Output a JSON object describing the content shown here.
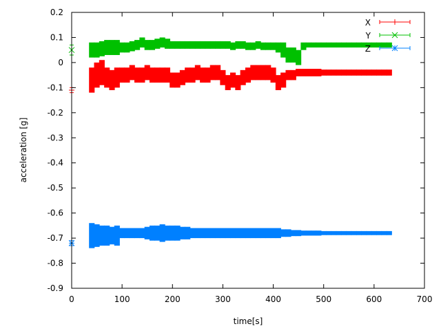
{
  "chart_data": {
    "type": "scatter",
    "subtype": "yerrorbars",
    "title": "",
    "xlabel": "time[s]",
    "ylabel": "acceleration [g]",
    "xlim": [
      0,
      700
    ],
    "ylim": [
      -0.9,
      0.2
    ],
    "xticks": [
      "0",
      "100",
      "200",
      "300",
      "400",
      "500",
      "600",
      "700"
    ],
    "yticks": [
      "0.2",
      "0.1",
      "0",
      "-0.1",
      "-0.2",
      "-0.3",
      "-0.4",
      "-0.5",
      "-0.6",
      "-0.7",
      "-0.8",
      "-0.9"
    ],
    "grid": false,
    "legend_position": "top-right",
    "x": [
      0,
      40,
      50,
      60,
      70,
      80,
      90,
      100,
      110,
      120,
      130,
      140,
      150,
      160,
      170,
      180,
      190,
      200,
      210,
      220,
      230,
      240,
      250,
      260,
      270,
      280,
      290,
      300,
      310,
      320,
      330,
      340,
      350,
      360,
      370,
      380,
      390,
      400,
      410,
      420,
      430,
      440,
      450,
      460,
      470,
      480,
      490,
      500,
      510,
      520,
      530,
      540,
      550,
      560,
      570,
      580,
      590,
      600,
      610,
      620,
      630
    ],
    "series": [
      {
        "name": "X",
        "color": "#ff0000",
        "marker": "plus",
        "y": [
          -0.11,
          -0.07,
          -0.05,
          -0.04,
          -0.06,
          -0.07,
          -0.06,
          -0.05,
          -0.05,
          -0.04,
          -0.05,
          -0.05,
          -0.04,
          -0.05,
          -0.05,
          -0.05,
          -0.05,
          -0.07,
          -0.07,
          -0.06,
          -0.05,
          -0.05,
          -0.04,
          -0.05,
          -0.05,
          -0.04,
          -0.04,
          -0.06,
          -0.08,
          -0.07,
          -0.08,
          -0.06,
          -0.05,
          -0.04,
          -0.04,
          -0.04,
          -0.04,
          -0.05,
          -0.08,
          -0.07,
          -0.05,
          -0.05,
          -0.04,
          -0.04,
          -0.04,
          -0.04,
          -0.04,
          -0.04,
          -0.04,
          -0.04,
          -0.04,
          -0.04,
          -0.04,
          -0.04,
          -0.04,
          -0.04,
          -0.04,
          -0.04,
          -0.04,
          -0.04,
          -0.04
        ],
        "yerr": [
          0.01,
          0.05,
          0.05,
          0.05,
          0.04,
          0.04,
          0.04,
          0.03,
          0.03,
          0.03,
          0.03,
          0.03,
          0.03,
          0.03,
          0.03,
          0.03,
          0.03,
          0.03,
          0.03,
          0.03,
          0.03,
          0.03,
          0.03,
          0.03,
          0.03,
          0.03,
          0.03,
          0.03,
          0.03,
          0.03,
          0.03,
          0.03,
          0.03,
          0.03,
          0.03,
          0.03,
          0.03,
          0.03,
          0.03,
          0.03,
          0.02,
          0.02,
          0.015,
          0.015,
          0.015,
          0.015,
          0.015,
          0.012,
          0.012,
          0.012,
          0.012,
          0.012,
          0.012,
          0.012,
          0.012,
          0.012,
          0.012,
          0.012,
          0.012,
          0.012,
          0.012
        ]
      },
      {
        "name": "Y",
        "color": "#00c000",
        "marker": "cross",
        "y": [
          0.05,
          0.05,
          0.05,
          0.055,
          0.06,
          0.06,
          0.06,
          0.06,
          0.06,
          0.065,
          0.07,
          0.08,
          0.07,
          0.07,
          0.075,
          0.08,
          0.075,
          0.07,
          0.07,
          0.07,
          0.07,
          0.07,
          0.07,
          0.07,
          0.07,
          0.07,
          0.07,
          0.07,
          0.07,
          0.065,
          0.07,
          0.07,
          0.065,
          0.065,
          0.07,
          0.065,
          0.065,
          0.065,
          0.06,
          0.05,
          0.03,
          0.03,
          0.02,
          0.065,
          0.07,
          0.07,
          0.07,
          0.07,
          0.07,
          0.07,
          0.07,
          0.07,
          0.07,
          0.07,
          0.07,
          0.07,
          0.07,
          0.07,
          0.07,
          0.07,
          0.07
        ],
        "yerr": [
          0.02,
          0.03,
          0.03,
          0.03,
          0.03,
          0.03,
          0.03,
          0.02,
          0.02,
          0.02,
          0.02,
          0.02,
          0.02,
          0.02,
          0.02,
          0.02,
          0.02,
          0.015,
          0.015,
          0.015,
          0.015,
          0.015,
          0.015,
          0.015,
          0.015,
          0.015,
          0.015,
          0.015,
          0.015,
          0.015,
          0.015,
          0.015,
          0.015,
          0.015,
          0.015,
          0.015,
          0.015,
          0.015,
          0.02,
          0.03,
          0.03,
          0.03,
          0.03,
          0.015,
          0.01,
          0.01,
          0.01,
          0.01,
          0.01,
          0.01,
          0.01,
          0.01,
          0.01,
          0.01,
          0.01,
          0.01,
          0.01,
          0.01,
          0.01,
          0.01,
          0.01
        ]
      },
      {
        "name": "Z",
        "color": "#0080ff",
        "marker": "star",
        "y": [
          -0.72,
          -0.69,
          -0.69,
          -0.69,
          -0.69,
          -0.69,
          -0.69,
          -0.68,
          -0.68,
          -0.68,
          -0.68,
          -0.68,
          -0.68,
          -0.68,
          -0.68,
          -0.68,
          -0.68,
          -0.68,
          -0.68,
          -0.68,
          -0.68,
          -0.68,
          -0.68,
          -0.68,
          -0.68,
          -0.68,
          -0.68,
          -0.68,
          -0.68,
          -0.68,
          -0.68,
          -0.68,
          -0.68,
          -0.68,
          -0.68,
          -0.68,
          -0.68,
          -0.68,
          -0.68,
          -0.68,
          -0.68,
          -0.68,
          -0.68,
          -0.68,
          -0.68,
          -0.68,
          -0.68,
          -0.68,
          -0.68,
          -0.68,
          -0.68,
          -0.68,
          -0.68,
          -0.68,
          -0.68,
          -0.68,
          -0.68,
          -0.68,
          -0.68,
          -0.68,
          -0.68
        ],
        "yerr": [
          0.01,
          0.05,
          0.045,
          0.04,
          0.04,
          0.035,
          0.04,
          0.02,
          0.02,
          0.02,
          0.02,
          0.02,
          0.025,
          0.03,
          0.03,
          0.035,
          0.03,
          0.03,
          0.03,
          0.025,
          0.025,
          0.02,
          0.02,
          0.02,
          0.02,
          0.02,
          0.02,
          0.02,
          0.02,
          0.02,
          0.02,
          0.02,
          0.02,
          0.02,
          0.02,
          0.02,
          0.02,
          0.02,
          0.02,
          0.015,
          0.015,
          0.012,
          0.012,
          0.01,
          0.01,
          0.01,
          0.01,
          0.008,
          0.008,
          0.008,
          0.008,
          0.008,
          0.008,
          0.008,
          0.008,
          0.008,
          0.008,
          0.008,
          0.008,
          0.008,
          0.008
        ]
      }
    ]
  }
}
